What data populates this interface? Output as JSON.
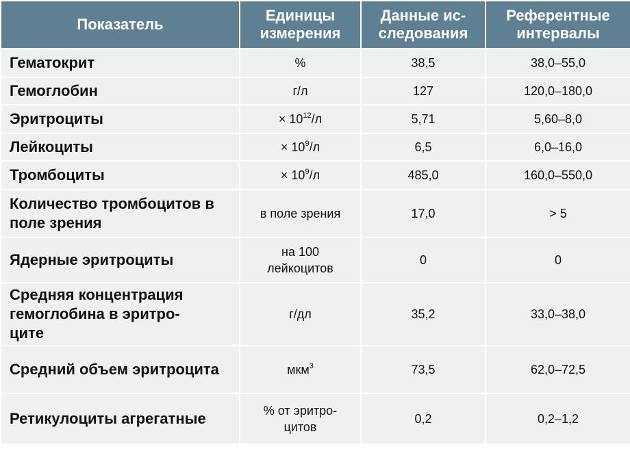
{
  "table": {
    "headers": [
      "Показатель",
      "Единицы измерения",
      "Данные ис-следования",
      "Референтные интервалы"
    ],
    "rows": [
      {
        "name": "Гематокрит",
        "unit": "%",
        "value": "38,5",
        "ref": "38,0–55,0"
      },
      {
        "name": "Гемоглобин",
        "unit": "г/л",
        "value": "127",
        "ref": "120,0–180,0"
      },
      {
        "name": "Эритроциты",
        "unit": "× 10",
        "unit_sup": "12",
        "unit_after": "/л",
        "value": "5,71",
        "ref": "5,60–8,0"
      },
      {
        "name": "Лейкоциты",
        "unit": "× 10",
        "unit_sup": "9",
        "unit_after": "/л",
        "value": "6,5",
        "ref": "6,0–16,0"
      },
      {
        "name": "Тромбоциты",
        "unit": "× 10",
        "unit_sup": "9",
        "unit_after": "/л",
        "value": "485,0",
        "ref": "160,0–550,0"
      },
      {
        "name": "Количество тромбоцитов в поле зрения",
        "unit": "в поле зрения",
        "value": "17,0",
        "ref": "> 5"
      },
      {
        "name": "Ядерные эритроциты",
        "unit": "на 100 лейкоцитов",
        "value": "0",
        "ref": "0"
      },
      {
        "name": "Средняя концентрация гемоглобина в эритро-це",
        "name_display": "Средняя концентрация гемоглобина в эритро-­ците",
        "unit": "г/дл",
        "value": "35,2",
        "ref": "33,0–38,0"
      },
      {
        "name": "Средний объем эритроцита",
        "unit": "мкм",
        "unit_sup": "3",
        "unit_after": "",
        "value": "73,5",
        "ref": "62,0–72,5"
      },
      {
        "name": "Ретикулоциты агрегатные",
        "unit": "% от эритро-цитов",
        "value": "0,2",
        "ref": "0,2–1,2"
      }
    ]
  }
}
